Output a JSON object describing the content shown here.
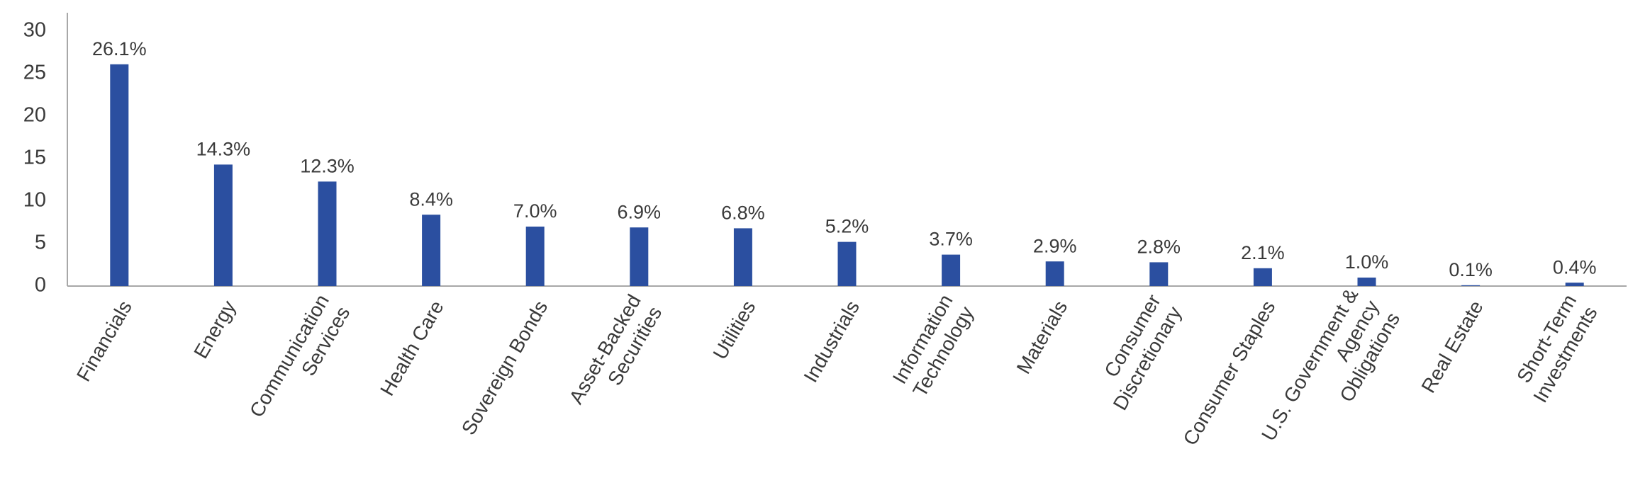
{
  "chart_data": {
    "type": "bar",
    "categories": [
      "Financials",
      "Energy",
      "Communication\nServices",
      "Health Care",
      "Sovereign Bonds",
      "Asset-Backed\nSecurities",
      "Utilities",
      "Industrials",
      "Information\nTechnology",
      "Materials",
      "Consumer\nDiscretionary",
      "Consumer Staples",
      "U.S. Government &\nAgency\nObligations",
      "Real Estate",
      "Short-Term\nInvestments"
    ],
    "values": [
      26.1,
      14.3,
      12.3,
      8.4,
      7.0,
      6.9,
      6.8,
      5.2,
      3.7,
      2.9,
      2.8,
      2.1,
      1.0,
      0.1,
      0.4
    ],
    "value_labels": [
      "26.1%",
      "14.3%",
      "12.3%",
      "8.4%",
      "7.0%",
      "6.9%",
      "6.8%",
      "5.2%",
      "3.7%",
      "2.9%",
      "2.8%",
      "2.1%",
      "1.0%",
      "0.1%",
      "0.4%"
    ],
    "color": "#2b4fa0",
    "ylim": [
      0,
      30
    ],
    "yticks": [
      0,
      5,
      10,
      15,
      20,
      25,
      30
    ],
    "grid": false
  }
}
